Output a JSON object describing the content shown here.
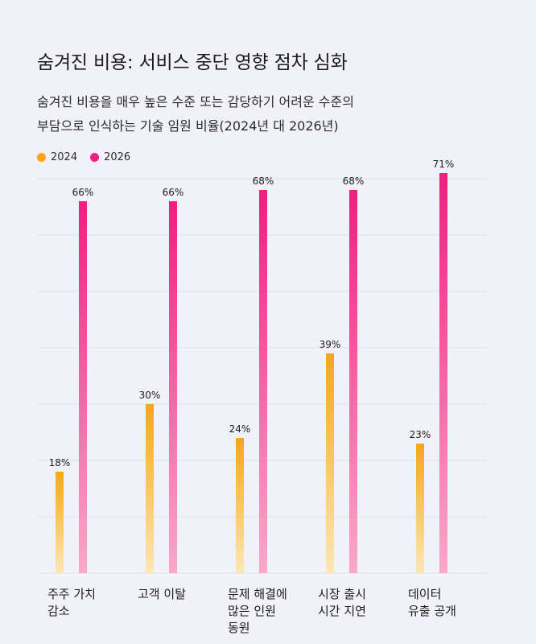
{
  "title": "숨겨진 비용: 서비스 중단 영향 점차 심화",
  "subtitle_lines": [
    "숨겨진 비용을 매우 높은 수준 또는 감당하기 어려운 수준의",
    "부담으로 인식하는 기술 임원 비율(2024년 대 2026년)"
  ],
  "colors": {
    "s2024": "#f8a61c",
    "s2026": "#ee1f80",
    "grid": "#dde0ec"
  },
  "chart_data": {
    "type": "bar",
    "title": "숨겨진 비용: 서비스 중단 영향 점차 심화",
    "ylim": [
      0,
      70
    ],
    "grid": true,
    "legend": "top-left",
    "categories": [
      [
        "주주 가치",
        "감소"
      ],
      [
        "고객 이탈"
      ],
      [
        "문제 해결에",
        "많은 인원",
        "동원"
      ],
      [
        "시장 출시",
        "시간 지연"
      ],
      [
        "데이터",
        "유출 공개"
      ]
    ],
    "series": [
      {
        "name": "2024",
        "values": [
          18,
          30,
          24,
          39,
          23
        ],
        "labels": [
          "18%",
          "30%",
          "24%",
          "39%",
          "23%"
        ]
      },
      {
        "name": "2026",
        "values": [
          66,
          66,
          68,
          68,
          71
        ],
        "labels": [
          "66%",
          "66%",
          "68%",
          "68%",
          "71%"
        ]
      }
    ]
  }
}
